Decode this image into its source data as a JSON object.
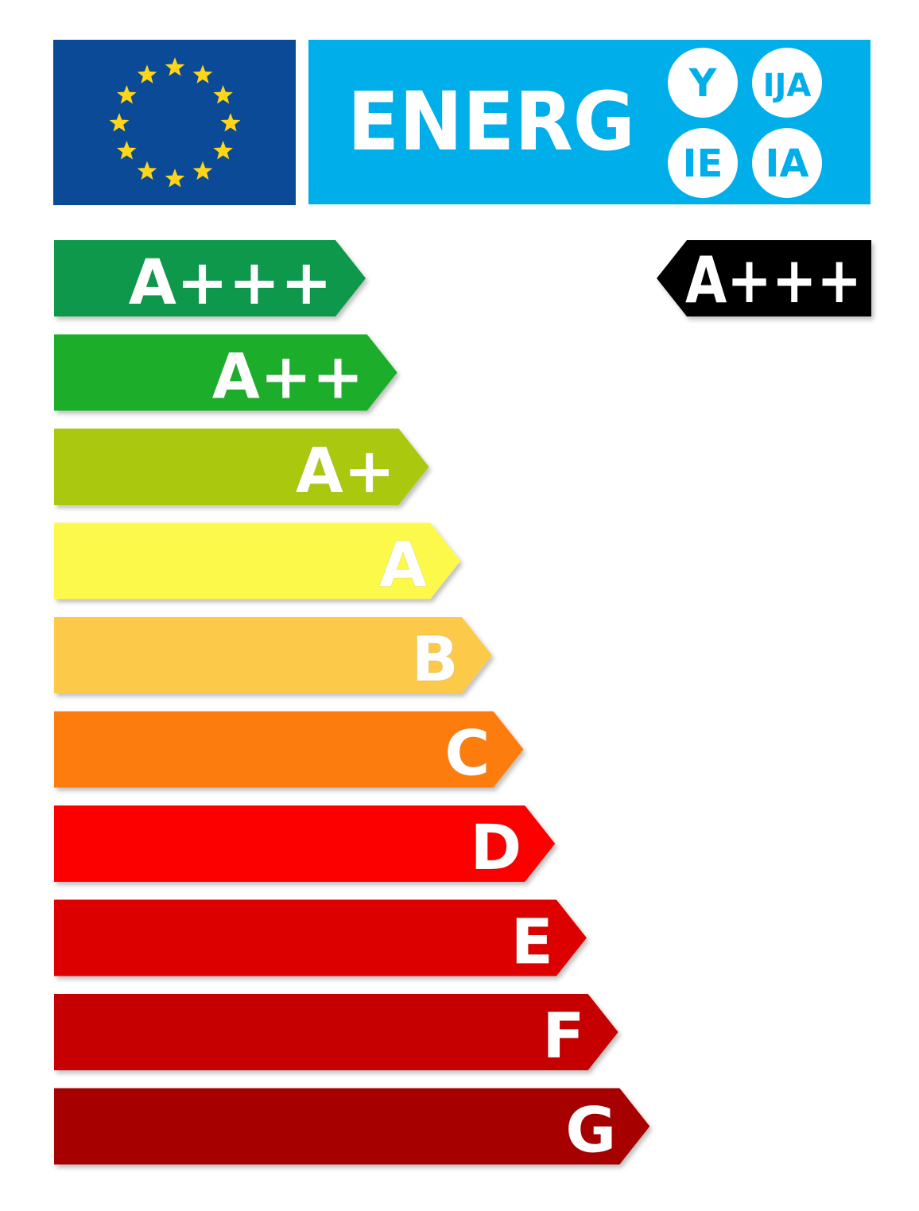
{
  "header": {
    "flag_color": "#0a4a96",
    "star_color": "#ffd617",
    "banner_color": "#00aeea",
    "title": "ENERG",
    "suffixes": [
      "Y",
      "IJA",
      "IE",
      "IA"
    ]
  },
  "scale": [
    {
      "label": "A+++",
      "color": "#10984c"
    },
    {
      "label": "A++",
      "color": "#1fae2a"
    },
    {
      "label": "A+",
      "color": "#aac80a"
    },
    {
      "label": "A",
      "color": "#fdf94c"
    },
    {
      "label": "B",
      "color": "#fdc94a"
    },
    {
      "label": "C",
      "color": "#fc7d08"
    },
    {
      "label": "D",
      "color": "#fc0000"
    },
    {
      "label": "E",
      "color": "#dd0000"
    },
    {
      "label": "F",
      "color": "#c60000"
    },
    {
      "label": "G",
      "color": "#a60000"
    }
  ],
  "rating": {
    "label": "A+++",
    "color": "#000000"
  }
}
